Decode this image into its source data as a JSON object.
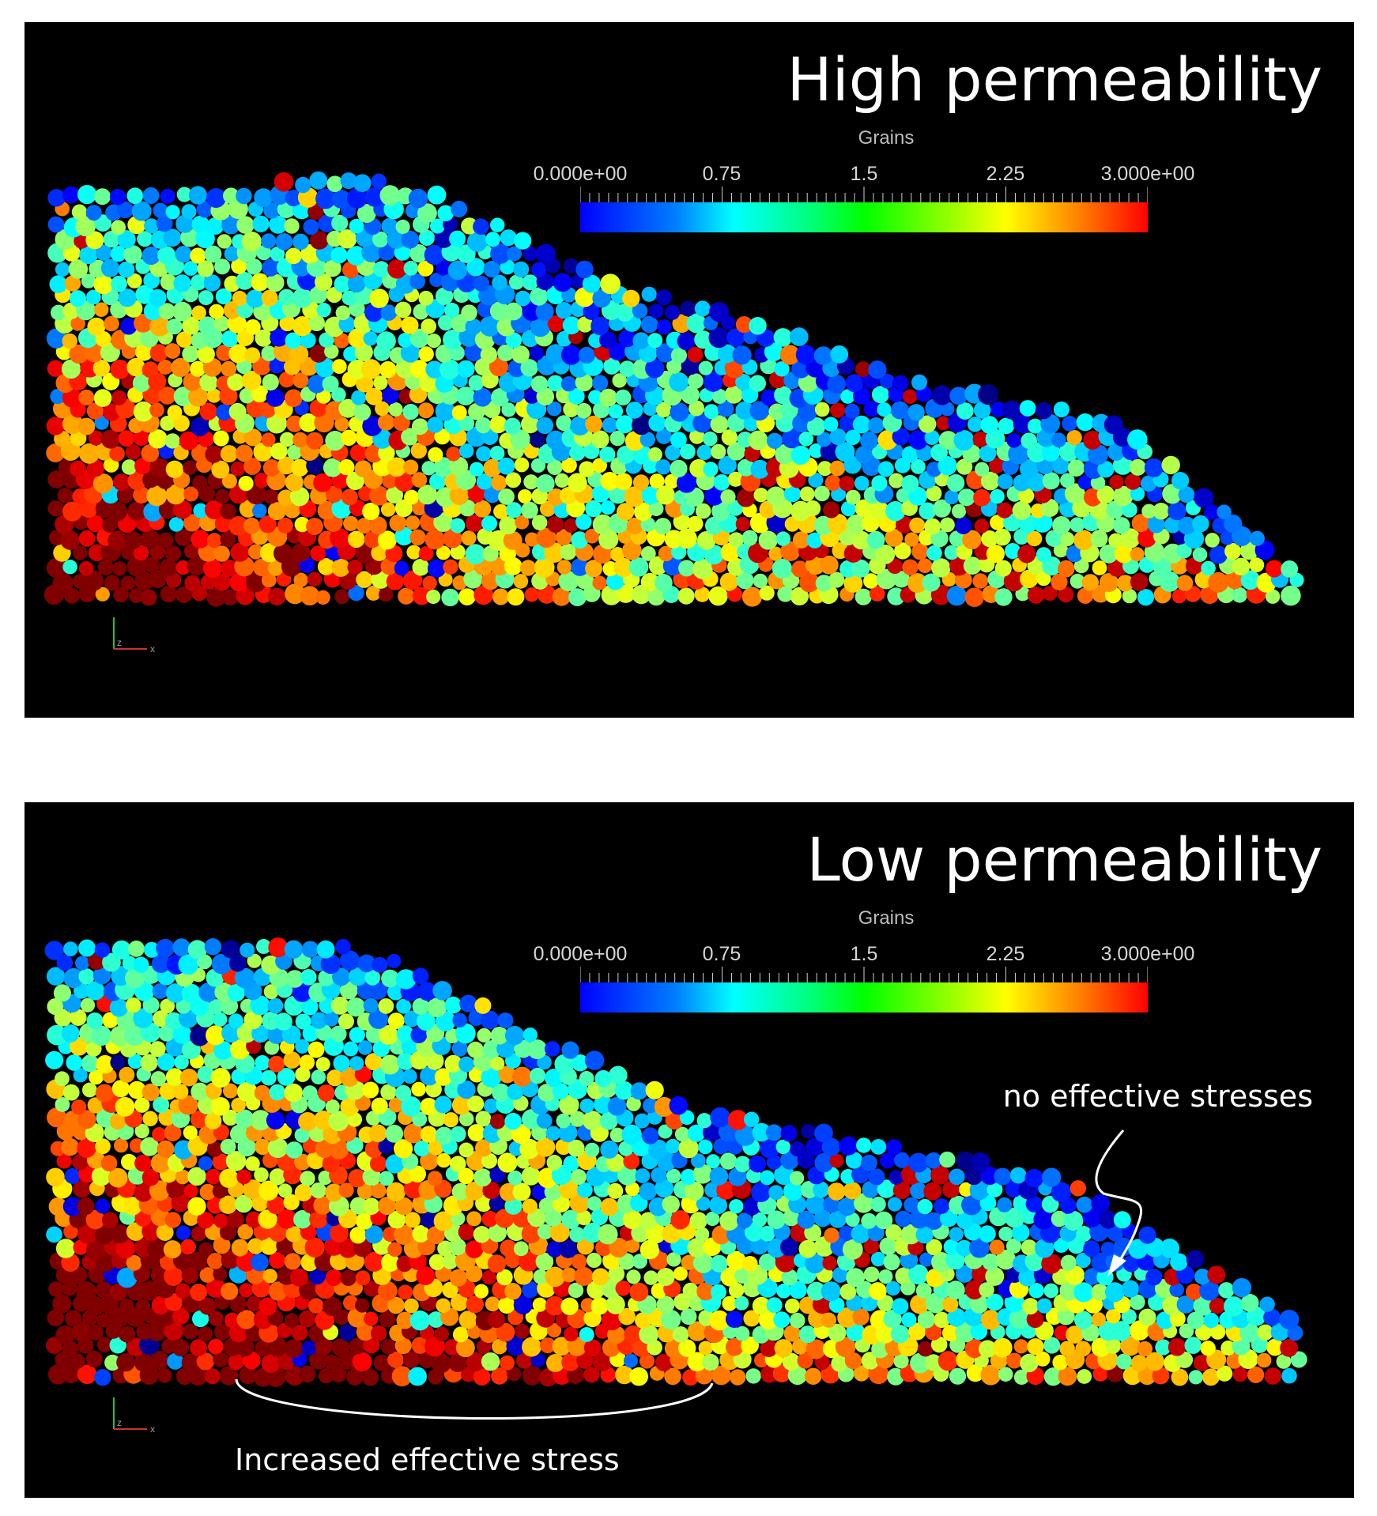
{
  "panels": [
    {
      "title": "High permeability",
      "legend": {
        "title": "Grains",
        "ticks": [
          "0.000e+00",
          "0.75",
          "1.5",
          "2.25",
          "3.000e+00"
        ],
        "range": [
          0,
          3
        ]
      },
      "packing": {
        "profile": [
          [
            0.0,
            210
          ],
          [
            0.25,
            200
          ],
          [
            0.3,
            215
          ],
          [
            0.45,
            330
          ],
          [
            0.55,
            370
          ],
          [
            0.7,
            460
          ],
          [
            0.85,
            500
          ],
          [
            1.0,
            700
          ]
        ],
        "red_left_fraction": 0.3
      }
    },
    {
      "title": "Low permeability",
      "legend": {
        "title": "Grains",
        "ticks": [
          "0.000e+00",
          "0.75",
          "1.5",
          "2.25",
          "3.000e+00"
        ],
        "range": [
          0,
          3
        ]
      },
      "packing": {
        "profile": [
          [
            0.0,
            180
          ],
          [
            0.2,
            170
          ],
          [
            0.27,
            200
          ],
          [
            0.35,
            260
          ],
          [
            0.5,
            380
          ],
          [
            0.65,
            430
          ],
          [
            0.8,
            470
          ],
          [
            1.0,
            660
          ]
        ],
        "red_left_fraction": 0.52
      },
      "annotations": {
        "top_right": "no effective stresses",
        "bottom": "Increased effective stress"
      }
    }
  ],
  "colors": {
    "background": "#000000",
    "text": "#ffffff",
    "colormap": [
      "#0000ff",
      "#00ffff",
      "#00ff00",
      "#ffff00",
      "#ff0000"
    ]
  },
  "axes_triad": {
    "labels": [
      "z",
      "x"
    ]
  }
}
